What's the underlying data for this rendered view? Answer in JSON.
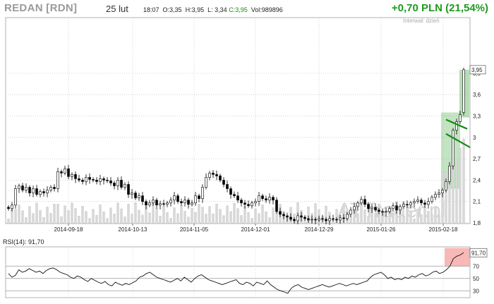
{
  "header": {
    "ticker": "REDAN [RDN]",
    "date": "25 lut",
    "time": "18:07",
    "open": "O:3,35",
    "high": "H:3,95",
    "low": "L: 3,34",
    "close": "C:3,95",
    "volume": "Vol:989896",
    "change": "+0,70 PLN (21,54%)"
  },
  "interval_label": "Interwał: dzień",
  "watermark": "ATTrader.pl",
  "chart_data": [
    {
      "type": "candlestick",
      "y_ticks": [
        "3,9",
        "3,6",
        "3,3",
        "3",
        "2,7",
        "2,4",
        "2,1",
        "1,8"
      ],
      "y_tick_values": [
        3.9,
        3.6,
        3.3,
        3.0,
        2.7,
        2.4,
        2.1,
        1.8
      ],
      "ylim": [
        1.8,
        4.0
      ],
      "x_ticks": [
        "2014-09-18",
        "2014-10-13",
        "2014-11-05",
        "2014-12-01",
        "2014-12-29",
        "2015-01-26",
        "2015-02-18"
      ],
      "last_price_label": "3,95",
      "grid": true,
      "overlays": [
        "volume bars",
        "green highlight zones",
        "trend channel lines"
      ],
      "colors": {
        "up": "#ffffff",
        "down": "#000000",
        "zone": "#7ac27a",
        "channel": "#1a8a1a",
        "volume": "#cfcfcf"
      }
    },
    {
      "type": "line",
      "title": "RSI(14): 91,70",
      "y_ticks": [
        "70",
        "50",
        "30"
      ],
      "y_tick_values": [
        70,
        50,
        30
      ],
      "ylim": [
        20,
        100
      ],
      "last_value_label": "91,70",
      "last_value": 91.7,
      "grid": true,
      "colors": {
        "line": "#000000",
        "overbought_zone": "#f4a0a0"
      }
    }
  ]
}
